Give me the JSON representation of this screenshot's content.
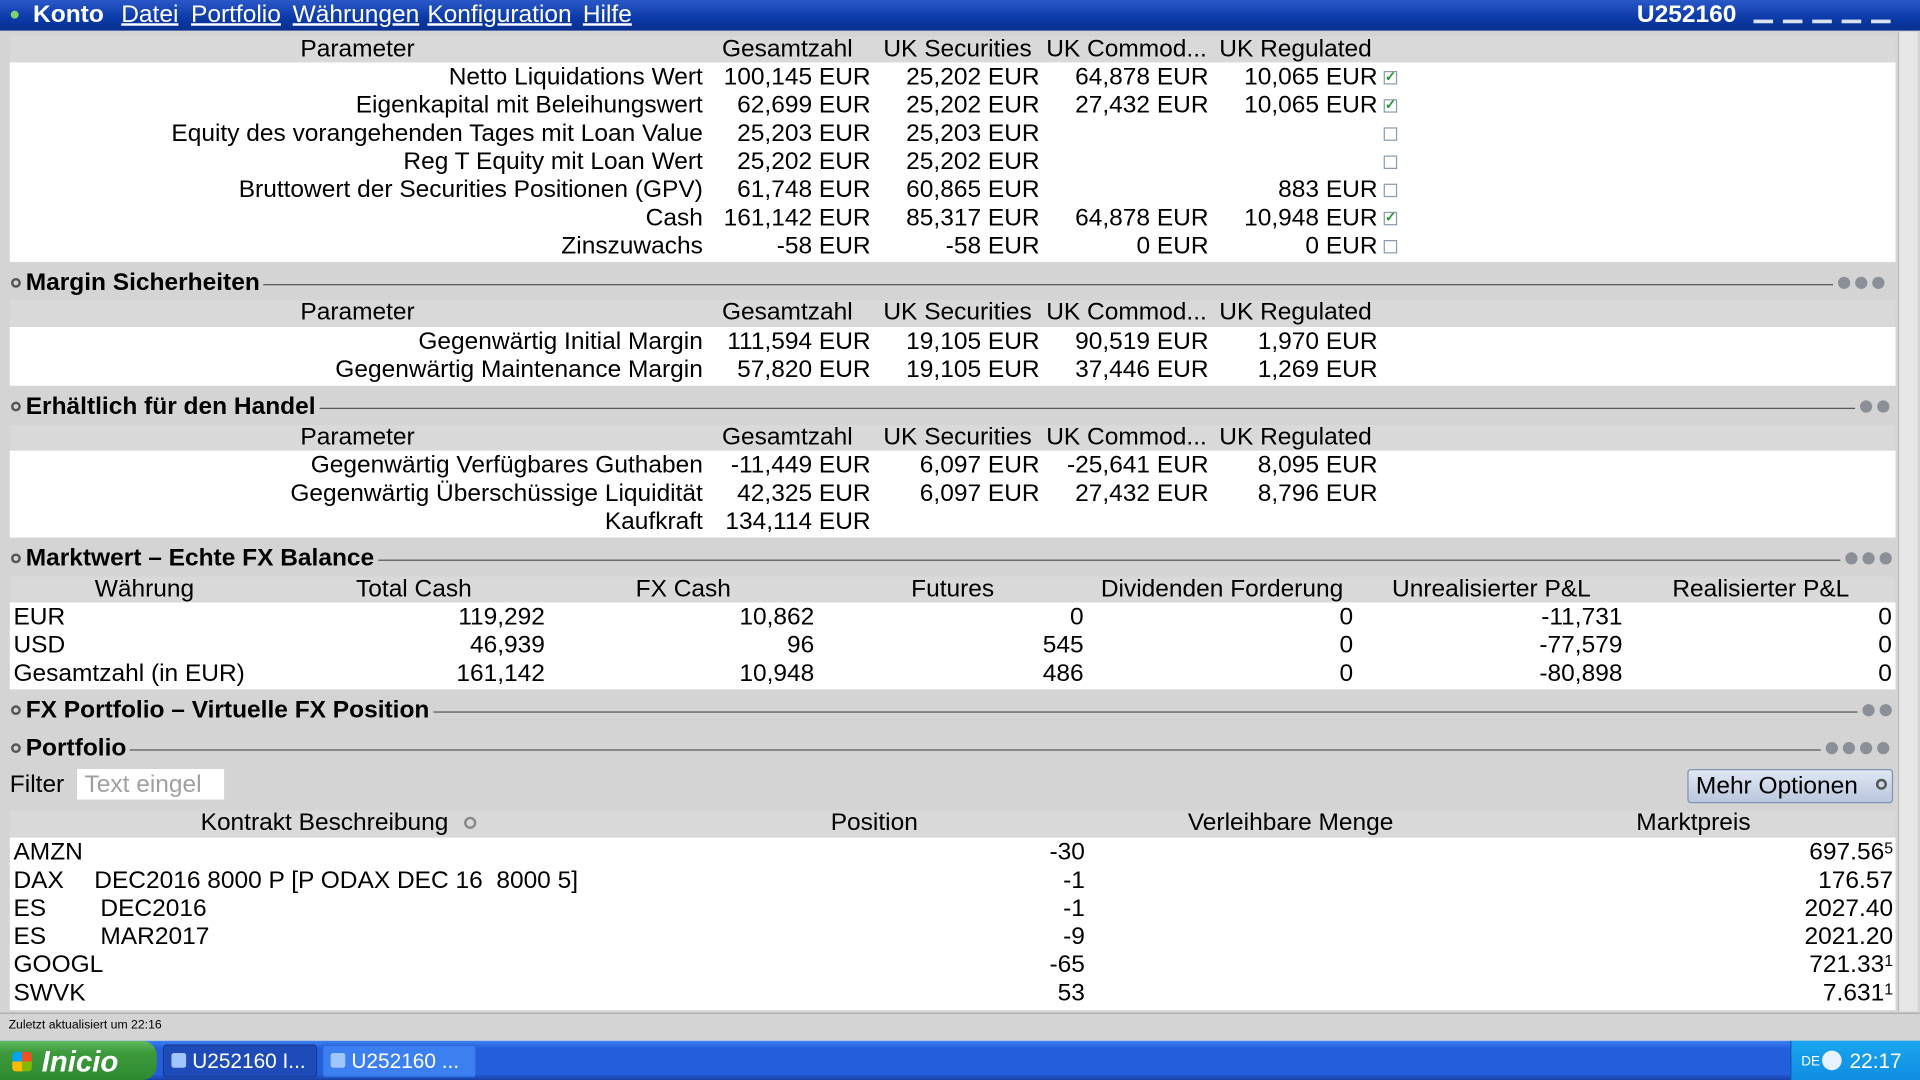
{
  "window": {
    "app": "Konto",
    "menu": [
      "Datei",
      "Portfolio",
      "Währungen",
      "Konfiguration",
      "Hilfe"
    ],
    "account": "U252160"
  },
  "account_summary": {
    "columns": [
      "Parameter",
      "Gesamtzahl",
      "UK Securities",
      "UK Commod...",
      "UK Regulated"
    ],
    "rows": [
      {
        "cells": [
          "Netto Liquidations Wert",
          "100,145 EUR",
          "25,202 EUR",
          "64,878 EUR",
          "10,065 EUR"
        ],
        "checked": true
      },
      {
        "cells": [
          "Eigenkapital mit Beleihungswert",
          "62,699 EUR",
          "25,202 EUR",
          "27,432 EUR",
          "10,065 EUR"
        ],
        "checked": true
      },
      {
        "cells": [
          "Equity des vorangehenden Tages mit Loan Value",
          "25,203 EUR",
          "25,203 EUR",
          null,
          null
        ],
        "checked": false
      },
      {
        "cells": [
          "Reg T Equity mit Loan Wert",
          "25,202 EUR",
          "25,202 EUR",
          null,
          null
        ],
        "checked": false
      },
      {
        "cells": [
          "Bruttowert der Securities Positionen (GPV)",
          "61,748 EUR",
          "60,865 EUR",
          null,
          "883 EUR"
        ],
        "checked": false
      },
      {
        "cells": [
          "Cash",
          "161,142 EUR",
          "85,317 EUR",
          "64,878 EUR",
          "10,948 EUR"
        ],
        "checked": true
      },
      {
        "cells": [
          "Zinszuwachs",
          "-58 EUR",
          "-58 EUR",
          "0 EUR",
          "0 EUR"
        ],
        "checked": false
      }
    ]
  },
  "sections": [
    {
      "title": "Margin Sicherheiten",
      "columns": [
        "Parameter",
        "Gesamtzahl",
        "UK Securities",
        "UK Commod...",
        "UK Regulated"
      ],
      "rows": [
        [
          "Gegenwärtig Initial Margin",
          "111,594 EUR",
          "19,105 EUR",
          "90,519 EUR",
          "1,970 EUR"
        ],
        [
          "Gegenwärtig Maintenance Margin",
          "57,820 EUR",
          "19,105 EUR",
          "37,446 EUR",
          "1,269 EUR"
        ]
      ]
    },
    {
      "title": "Erhältlich für den Handel",
      "columns": [
        "Parameter",
        "Gesamtzahl",
        "UK Securities",
        "UK Commod...",
        "UK Regulated"
      ],
      "rows": [
        [
          "Gegenwärtig Verfügbares Guthaben",
          "-11,449 EUR",
          "6,097 EUR",
          "-25,641 EUR",
          "8,095 EUR"
        ],
        [
          "Gegenwärtig Überschüssige Liquidität",
          "42,325 EUR",
          "6,097 EUR",
          "27,432 EUR",
          "8,796 EUR"
        ],
        [
          "Kaufkraft",
          "134,114 EUR",
          null,
          null,
          null
        ]
      ]
    },
    {
      "title": "Marktwert – Echte FX Balance",
      "columns": [
        "Währung",
        "Total Cash",
        "FX Cash",
        "Futures",
        "Dividenden Forderung",
        "Unrealisierter P&L",
        "Realisierter P&L"
      ],
      "rows": [
        [
          "EUR",
          "119,292",
          "10,862",
          "0",
          "0",
          "-11,731",
          "0"
        ],
        [
          "USD",
          "46,939",
          "96",
          "545",
          "0",
          "-77,579",
          "0"
        ],
        [
          "Gesamtzahl (in EUR)",
          "161,142",
          "10,948",
          "486",
          "0",
          "-80,898",
          "0"
        ]
      ]
    },
    {
      "title": "FX Portfolio – Virtuelle FX Position"
    },
    {
      "title": "Portfolio",
      "filter_label": "Filter",
      "filter_placeholder": "Text eingel",
      "button": "Mehr Optionen",
      "columns": [
        "Kontrakt Beschreibung",
        "Position",
        "Verleihbare Menge",
        "Marktpreis"
      ],
      "rows": [
        {
          "symbol": "AMZN",
          "position": "-30",
          "price": "697.56",
          "price_sup": "5"
        },
        {
          "symbol": "DAX",
          "detail": "DEC2016 8000 P [P ODAX DEC 16  8000 5]",
          "position": "-1",
          "price": "176.57"
        },
        {
          "symbol": "ES",
          "detail": "DEC2016",
          "position": "-1",
          "price": "2027.40"
        },
        {
          "symbol": "ES",
          "detail": "MAR2017",
          "position": "-9",
          "price": "2021.20"
        },
        {
          "symbol": "GOOGL",
          "position": "-65",
          "price": "721.33",
          "price_sup": "1"
        },
        {
          "symbol": "SWVK",
          "position": "53",
          "price": "7.631",
          "price_sup": "1"
        }
      ]
    }
  ],
  "status": "Zuletzt aktualisiert um 22:16",
  "taskbar": {
    "start": "Inicio",
    "tasks": [
      "U252160 I...",
      "U252160 ..."
    ],
    "language": "DE",
    "clock": "22:17"
  }
}
